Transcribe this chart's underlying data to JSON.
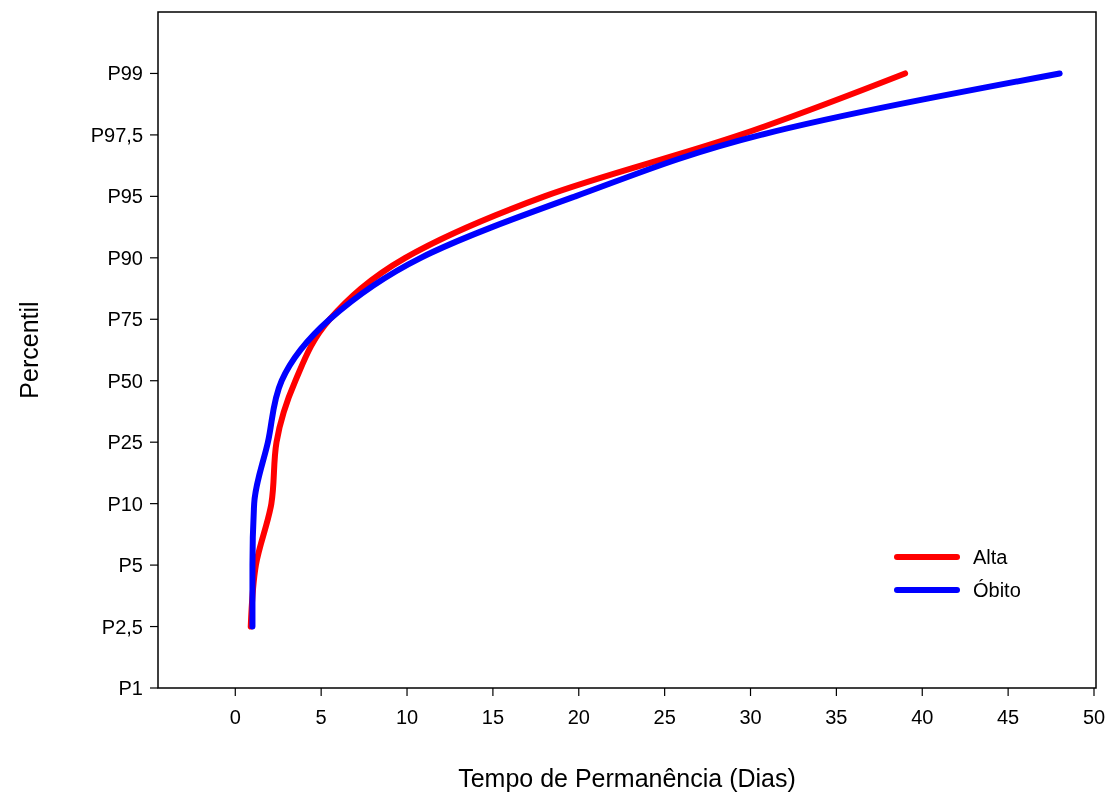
{
  "chart_data": {
    "type": "line",
    "orientation": "horizontal",
    "xlabel": "Tempo de Permanência (Dias)",
    "ylabel": "Percentil",
    "categories": [
      "P99",
      "P97,5",
      "P95",
      "P90",
      "P75",
      "P50",
      "P25",
      "P10",
      "P5",
      "P2,5",
      "P1"
    ],
    "xlim": [
      -4.5,
      50
    ],
    "xticks": [
      0,
      5,
      10,
      15,
      20,
      25,
      30,
      35,
      40,
      45,
      50
    ],
    "legend": "bottom right",
    "series": [
      {
        "name": "Alta",
        "color": "#ff0000",
        "values": [
          39,
          29.4,
          18,
          9.9,
          5.5,
          3.5,
          2.4,
          2.1,
          1.2,
          0.9,
          null
        ]
      },
      {
        "name": "Óbito",
        "color": "#0000ff",
        "values": [
          48,
          30.6,
          19.8,
          10.8,
          5.5,
          2.7,
          1.9,
          1.1,
          1,
          1,
          null
        ]
      }
    ]
  }
}
